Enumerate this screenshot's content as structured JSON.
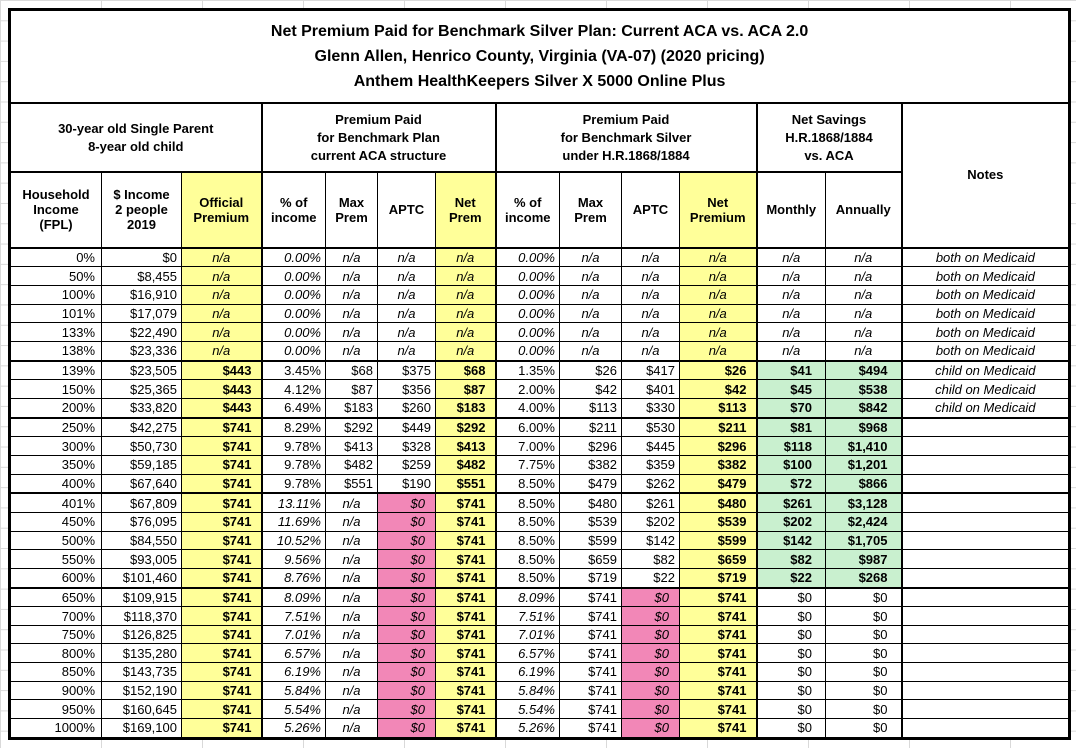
{
  "title": {
    "line1": "Net Premium Paid for Benchmark Silver Plan: Current ACA vs. ACA 2.0",
    "line2": "Glenn Allen, Henrico County, Virginia (VA-07) (2020 pricing)",
    "line3": "Anthem HealthKeepers Silver X 5000 Online Plus"
  },
  "group_headers": {
    "person": "30-year old Single Parent\n8-year old child",
    "aca": "Premium Paid\nfor Benchmark Plan\ncurrent ACA structure",
    "hr": "Premium Paid\nfor Benchmark Silver\nunder H.R.1868/1884",
    "savings": "Net Savings\nH.R.1868/1884\nvs. ACA",
    "notes": "Notes"
  },
  "column_headers": {
    "fpl": "Household\nIncome\n(FPL)",
    "income": "$ Income\n2 people\n2019",
    "official": "Official\nPremium",
    "aca_pct": "% of\nincome",
    "aca_max": "Max\nPrem",
    "aca_aptc": "APTC",
    "aca_net": "Net\nPrem",
    "hr_pct": "% of\nincome",
    "hr_max": "Max\nPrem",
    "hr_aptc": "APTC",
    "hr_net": "Net\nPremium",
    "monthly": "Monthly",
    "annually": "Annually"
  },
  "colors": {
    "yellow": "#FFFF99",
    "pink": "#F287B7",
    "green": "#C9F0CF",
    "border": "#000000"
  },
  "col_keys": [
    "fpl",
    "income",
    "official",
    "aca_pct",
    "aca_max",
    "aca_aptc",
    "aca_net",
    "hr_pct",
    "hr_max",
    "hr_aptc",
    "hr_net",
    "monthly",
    "annually",
    "notes"
  ],
  "rows": [
    {
      "fpl": "0%",
      "income": "$0",
      "official": "n/a",
      "aca_pct": "0.00%",
      "aca_max": "n/a",
      "aca_aptc": "n/a",
      "aca_net": "n/a",
      "hr_pct": "0.00%",
      "hr_max": "n/a",
      "hr_aptc": "n/a",
      "hr_net": "n/a",
      "monthly": "n/a",
      "annually": "n/a",
      "notes": "both on Medicaid",
      "band": "medicaid",
      "thick": false
    },
    {
      "fpl": "50%",
      "income": "$8,455",
      "official": "n/a",
      "aca_pct": "0.00%",
      "aca_max": "n/a",
      "aca_aptc": "n/a",
      "aca_net": "n/a",
      "hr_pct": "0.00%",
      "hr_max": "n/a",
      "hr_aptc": "n/a",
      "hr_net": "n/a",
      "monthly": "n/a",
      "annually": "n/a",
      "notes": "both on Medicaid",
      "band": "medicaid",
      "thick": false
    },
    {
      "fpl": "100%",
      "income": "$16,910",
      "official": "n/a",
      "aca_pct": "0.00%",
      "aca_max": "n/a",
      "aca_aptc": "n/a",
      "aca_net": "n/a",
      "hr_pct": "0.00%",
      "hr_max": "n/a",
      "hr_aptc": "n/a",
      "hr_net": "n/a",
      "monthly": "n/a",
      "annually": "n/a",
      "notes": "both on Medicaid",
      "band": "medicaid",
      "thick": false
    },
    {
      "fpl": "101%",
      "income": "$17,079",
      "official": "n/a",
      "aca_pct": "0.00%",
      "aca_max": "n/a",
      "aca_aptc": "n/a",
      "aca_net": "n/a",
      "hr_pct": "0.00%",
      "hr_max": "n/a",
      "hr_aptc": "n/a",
      "hr_net": "n/a",
      "monthly": "n/a",
      "annually": "n/a",
      "notes": "both on Medicaid",
      "band": "medicaid",
      "thick": false
    },
    {
      "fpl": "133%",
      "income": "$22,490",
      "official": "n/a",
      "aca_pct": "0.00%",
      "aca_max": "n/a",
      "aca_aptc": "n/a",
      "aca_net": "n/a",
      "hr_pct": "0.00%",
      "hr_max": "n/a",
      "hr_aptc": "n/a",
      "hr_net": "n/a",
      "monthly": "n/a",
      "annually": "n/a",
      "notes": "both on Medicaid",
      "band": "medicaid",
      "thick": false
    },
    {
      "fpl": "138%",
      "income": "$23,336",
      "official": "n/a",
      "aca_pct": "0.00%",
      "aca_max": "n/a",
      "aca_aptc": "n/a",
      "aca_net": "n/a",
      "hr_pct": "0.00%",
      "hr_max": "n/a",
      "hr_aptc": "n/a",
      "hr_net": "n/a",
      "monthly": "n/a",
      "annually": "n/a",
      "notes": "both on Medicaid",
      "band": "medicaid",
      "thick": false
    },
    {
      "fpl": "139%",
      "income": "$23,505",
      "official": "$443",
      "aca_pct": "3.45%",
      "aca_max": "$68",
      "aca_aptc": "$375",
      "aca_net": "$68",
      "hr_pct": "1.35%",
      "hr_max": "$26",
      "hr_aptc": "$417",
      "hr_net": "$26",
      "monthly": "$41",
      "annually": "$494",
      "notes": "child on Medicaid",
      "band": "subsidy",
      "thick": true
    },
    {
      "fpl": "150%",
      "income": "$25,365",
      "official": "$443",
      "aca_pct": "4.12%",
      "aca_max": "$87",
      "aca_aptc": "$356",
      "aca_net": "$87",
      "hr_pct": "2.00%",
      "hr_max": "$42",
      "hr_aptc": "$401",
      "hr_net": "$42",
      "monthly": "$45",
      "annually": "$538",
      "notes": "child on Medicaid",
      "band": "subsidy",
      "thick": false
    },
    {
      "fpl": "200%",
      "income": "$33,820",
      "official": "$443",
      "aca_pct": "6.49%",
      "aca_max": "$183",
      "aca_aptc": "$260",
      "aca_net": "$183",
      "hr_pct": "4.00%",
      "hr_max": "$113",
      "hr_aptc": "$330",
      "hr_net": "$113",
      "monthly": "$70",
      "annually": "$842",
      "notes": "child on Medicaid",
      "band": "subsidy",
      "thick": false
    },
    {
      "fpl": "250%",
      "income": "$42,275",
      "official": "$741",
      "aca_pct": "8.29%",
      "aca_max": "$292",
      "aca_aptc": "$449",
      "aca_net": "$292",
      "hr_pct": "6.00%",
      "hr_max": "$211",
      "hr_aptc": "$530",
      "hr_net": "$211",
      "monthly": "$81",
      "annually": "$968",
      "notes": "",
      "band": "subsidy",
      "thick": true
    },
    {
      "fpl": "300%",
      "income": "$50,730",
      "official": "$741",
      "aca_pct": "9.78%",
      "aca_max": "$413",
      "aca_aptc": "$328",
      "aca_net": "$413",
      "hr_pct": "7.00%",
      "hr_max": "$296",
      "hr_aptc": "$445",
      "hr_net": "$296",
      "monthly": "$118",
      "annually": "$1,410",
      "notes": "",
      "band": "subsidy",
      "thick": false
    },
    {
      "fpl": "350%",
      "income": "$59,185",
      "official": "$741",
      "aca_pct": "9.78%",
      "aca_max": "$482",
      "aca_aptc": "$259",
      "aca_net": "$482",
      "hr_pct": "7.75%",
      "hr_max": "$382",
      "hr_aptc": "$359",
      "hr_net": "$382",
      "monthly": "$100",
      "annually": "$1,201",
      "notes": "",
      "band": "subsidy",
      "thick": false
    },
    {
      "fpl": "400%",
      "income": "$67,640",
      "official": "$741",
      "aca_pct": "9.78%",
      "aca_max": "$551",
      "aca_aptc": "$190",
      "aca_net": "$551",
      "hr_pct": "8.50%",
      "hr_max": "$479",
      "hr_aptc": "$262",
      "hr_net": "$479",
      "monthly": "$72",
      "annually": "$866",
      "notes": "",
      "band": "subsidy",
      "thick": false
    },
    {
      "fpl": "401%",
      "income": "$67,809",
      "official": "$741",
      "aca_pct": "13.11%",
      "aca_max": "n/a",
      "aca_aptc": "$0",
      "aca_net": "$741",
      "hr_pct": "8.50%",
      "hr_max": "$480",
      "hr_aptc": "$261",
      "hr_net": "$480",
      "monthly": "$261",
      "annually": "$3,128",
      "notes": "",
      "band": "cliff",
      "thick": true
    },
    {
      "fpl": "450%",
      "income": "$76,095",
      "official": "$741",
      "aca_pct": "11.69%",
      "aca_max": "n/a",
      "aca_aptc": "$0",
      "aca_net": "$741",
      "hr_pct": "8.50%",
      "hr_max": "$539",
      "hr_aptc": "$202",
      "hr_net": "$539",
      "monthly": "$202",
      "annually": "$2,424",
      "notes": "",
      "band": "cliff",
      "thick": false
    },
    {
      "fpl": "500%",
      "income": "$84,550",
      "official": "$741",
      "aca_pct": "10.52%",
      "aca_max": "n/a",
      "aca_aptc": "$0",
      "aca_net": "$741",
      "hr_pct": "8.50%",
      "hr_max": "$599",
      "hr_aptc": "$142",
      "hr_net": "$599",
      "monthly": "$142",
      "annually": "$1,705",
      "notes": "",
      "band": "cliff",
      "thick": false
    },
    {
      "fpl": "550%",
      "income": "$93,005",
      "official": "$741",
      "aca_pct": "9.56%",
      "aca_max": "n/a",
      "aca_aptc": "$0",
      "aca_net": "$741",
      "hr_pct": "8.50%",
      "hr_max": "$659",
      "hr_aptc": "$82",
      "hr_net": "$659",
      "monthly": "$82",
      "annually": "$987",
      "notes": "",
      "band": "cliff",
      "thick": false
    },
    {
      "fpl": "600%",
      "income": "$101,460",
      "official": "$741",
      "aca_pct": "8.76%",
      "aca_max": "n/a",
      "aca_aptc": "$0",
      "aca_net": "$741",
      "hr_pct": "8.50%",
      "hr_max": "$719",
      "hr_aptc": "$22",
      "hr_net": "$719",
      "monthly": "$22",
      "annually": "$268",
      "notes": "",
      "band": "cliff",
      "thick": false
    },
    {
      "fpl": "650%",
      "income": "$109,915",
      "official": "$741",
      "aca_pct": "8.09%",
      "aca_max": "n/a",
      "aca_aptc": "$0",
      "aca_net": "$741",
      "hr_pct": "8.09%",
      "hr_max": "$741",
      "hr_aptc": "$0",
      "hr_net": "$741",
      "monthly": "$0",
      "annually": "$0",
      "notes": "",
      "band": "flat",
      "thick": true
    },
    {
      "fpl": "700%",
      "income": "$118,370",
      "official": "$741",
      "aca_pct": "7.51%",
      "aca_max": "n/a",
      "aca_aptc": "$0",
      "aca_net": "$741",
      "hr_pct": "7.51%",
      "hr_max": "$741",
      "hr_aptc": "$0",
      "hr_net": "$741",
      "monthly": "$0",
      "annually": "$0",
      "notes": "",
      "band": "flat",
      "thick": false
    },
    {
      "fpl": "750%",
      "income": "$126,825",
      "official": "$741",
      "aca_pct": "7.01%",
      "aca_max": "n/a",
      "aca_aptc": "$0",
      "aca_net": "$741",
      "hr_pct": "7.01%",
      "hr_max": "$741",
      "hr_aptc": "$0",
      "hr_net": "$741",
      "monthly": "$0",
      "annually": "$0",
      "notes": "",
      "band": "flat",
      "thick": false
    },
    {
      "fpl": "800%",
      "income": "$135,280",
      "official": "$741",
      "aca_pct": "6.57%",
      "aca_max": "n/a",
      "aca_aptc": "$0",
      "aca_net": "$741",
      "hr_pct": "6.57%",
      "hr_max": "$741",
      "hr_aptc": "$0",
      "hr_net": "$741",
      "monthly": "$0",
      "annually": "$0",
      "notes": "",
      "band": "flat",
      "thick": false
    },
    {
      "fpl": "850%",
      "income": "$143,735",
      "official": "$741",
      "aca_pct": "6.19%",
      "aca_max": "n/a",
      "aca_aptc": "$0",
      "aca_net": "$741",
      "hr_pct": "6.19%",
      "hr_max": "$741",
      "hr_aptc": "$0",
      "hr_net": "$741",
      "monthly": "$0",
      "annually": "$0",
      "notes": "",
      "band": "flat",
      "thick": false
    },
    {
      "fpl": "900%",
      "income": "$152,190",
      "official": "$741",
      "aca_pct": "5.84%",
      "aca_max": "n/a",
      "aca_aptc": "$0",
      "aca_net": "$741",
      "hr_pct": "5.84%",
      "hr_max": "$741",
      "hr_aptc": "$0",
      "hr_net": "$741",
      "monthly": "$0",
      "annually": "$0",
      "notes": "",
      "band": "flat",
      "thick": false
    },
    {
      "fpl": "950%",
      "income": "$160,645",
      "official": "$741",
      "aca_pct": "5.54%",
      "aca_max": "n/a",
      "aca_aptc": "$0",
      "aca_net": "$741",
      "hr_pct": "5.54%",
      "hr_max": "$741",
      "hr_aptc": "$0",
      "hr_net": "$741",
      "monthly": "$0",
      "annually": "$0",
      "notes": "",
      "band": "flat",
      "thick": false
    },
    {
      "fpl": "1000%",
      "income": "$169,100",
      "official": "$741",
      "aca_pct": "5.26%",
      "aca_max": "n/a",
      "aca_aptc": "$0",
      "aca_net": "$741",
      "hr_pct": "5.26%",
      "hr_max": "$741",
      "hr_aptc": "$0",
      "hr_net": "$741",
      "monthly": "$0",
      "annually": "$0",
      "notes": "",
      "band": "flat",
      "thick": false
    }
  ]
}
